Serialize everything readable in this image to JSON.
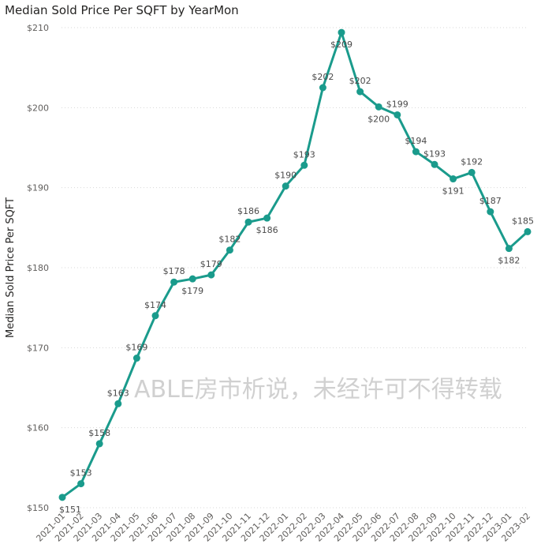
{
  "chart_data": {
    "type": "line",
    "title": "Median Sold Price Per SQFT by YearMon",
    "ylabel": "Median Sold Price Per SQFT",
    "xlabel": "",
    "ylim": [
      150,
      210
    ],
    "yticks": [
      150,
      160,
      170,
      180,
      190,
      200,
      210
    ],
    "ytick_labels": [
      "$150",
      "$160",
      "$170",
      "$180",
      "$190",
      "$200",
      "$210"
    ],
    "grid": true,
    "color": "#1a9b8c",
    "categories": [
      "2021-01",
      "2021-02",
      "2021-03",
      "2021-04",
      "2021-05",
      "2021-06",
      "2021-07",
      "2021-08",
      "2021-09",
      "2021-10",
      "2021-11",
      "2021-12",
      "2022-01",
      "2022-02",
      "2022-03",
      "2022-04",
      "2022-05",
      "2022-06",
      "2022-07",
      "2022-08",
      "2022-09",
      "2022-10",
      "2022-11",
      "2022-12",
      "2023-01",
      "2023-02"
    ],
    "values": [
      151.3,
      153.0,
      158.0,
      163.0,
      168.7,
      174.0,
      178.2,
      178.6,
      179.1,
      182.2,
      185.7,
      186.2,
      190.2,
      192.8,
      202.5,
      209.4,
      202.0,
      200.1,
      199.1,
      194.5,
      192.9,
      191.1,
      191.9,
      187.0,
      182.4,
      184.5
    ],
    "data_labels": [
      "$151",
      "$153",
      "$158",
      "$163",
      "$169",
      "$174",
      "$178",
      "$179",
      "$179",
      "$182",
      "$186",
      "$186",
      "$190",
      "$193",
      "$202",
      "$209",
      "$202",
      "$200",
      "$199",
      "$194",
      "$193",
      "$191",
      "$192",
      "$187",
      "$182",
      "$185"
    ],
    "label_pos": [
      "below",
      "above",
      "above",
      "above",
      "above",
      "above",
      "above",
      "below",
      "above",
      "above",
      "above",
      "below",
      "above",
      "above",
      "above",
      "below",
      "above",
      "below",
      "above",
      "above",
      "above",
      "below",
      "above",
      "above",
      "below",
      "above"
    ]
  },
  "watermark": "ABLE房市析说，未经许可不得转载"
}
